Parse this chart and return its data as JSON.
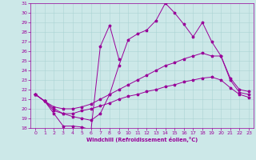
{
  "xlabel": "Windchill (Refroidissement éolien,°C)",
  "bg_color": "#cce8e8",
  "line_color": "#990099",
  "xlim": [
    -0.5,
    23.5
  ],
  "ylim": [
    18,
    31
  ],
  "xticks": [
    0,
    1,
    2,
    3,
    4,
    5,
    6,
    7,
    8,
    9,
    10,
    11,
    12,
    13,
    14,
    15,
    16,
    17,
    18,
    19,
    20,
    21,
    22,
    23
  ],
  "yticks": [
    18,
    19,
    20,
    21,
    22,
    23,
    24,
    25,
    26,
    27,
    28,
    29,
    30,
    31
  ],
  "series": [
    {
      "x": [
        0,
        1,
        2,
        3,
        4,
        5,
        6
      ],
      "y": [
        21.5,
        20.8,
        19.5,
        18.2,
        18.2,
        18.1,
        17.8
      ]
    },
    {
      "x": [
        6,
        7,
        8,
        9
      ],
      "y": [
        17.8,
        26.5,
        28.7,
        25.2
      ]
    },
    {
      "x": [
        0,
        1,
        2,
        3,
        4,
        5,
        6,
        7,
        8,
        9,
        10,
        11,
        12,
        13,
        14,
        15,
        16,
        17,
        18,
        19,
        20,
        21,
        22,
        23
      ],
      "y": [
        21.5,
        20.8,
        20.0,
        19.5,
        19.2,
        19.0,
        18.8,
        19.5,
        21.5,
        24.5,
        27.2,
        27.8,
        28.2,
        29.2,
        31.0,
        30.0,
        28.8,
        27.5,
        29.0,
        27.0,
        25.5,
        23.0,
        21.7,
        21.5
      ]
    },
    {
      "x": [
        0,
        1,
        2,
        3,
        4,
        5,
        6,
        7,
        8,
        9,
        10,
        11,
        12,
        13,
        14,
        15,
        16,
        17,
        18,
        19,
        20,
        21,
        22,
        23
      ],
      "y": [
        21.5,
        20.8,
        20.2,
        20.0,
        20.0,
        20.2,
        20.5,
        21.0,
        21.5,
        22.0,
        22.5,
        23.0,
        23.5,
        24.0,
        24.5,
        24.8,
        25.2,
        25.5,
        25.8,
        25.5,
        25.5,
        23.2,
        22.0,
        21.8
      ]
    },
    {
      "x": [
        0,
        1,
        2,
        3,
        4,
        5,
        6,
        7,
        8,
        9,
        10,
        11,
        12,
        13,
        14,
        15,
        16,
        17,
        18,
        19,
        20,
        21,
        22,
        23
      ],
      "y": [
        21.5,
        20.8,
        19.8,
        19.5,
        19.5,
        19.8,
        20.0,
        20.3,
        20.6,
        21.0,
        21.3,
        21.5,
        21.8,
        22.0,
        22.3,
        22.5,
        22.8,
        23.0,
        23.2,
        23.3,
        23.0,
        22.2,
        21.5,
        21.2
      ]
    }
  ]
}
